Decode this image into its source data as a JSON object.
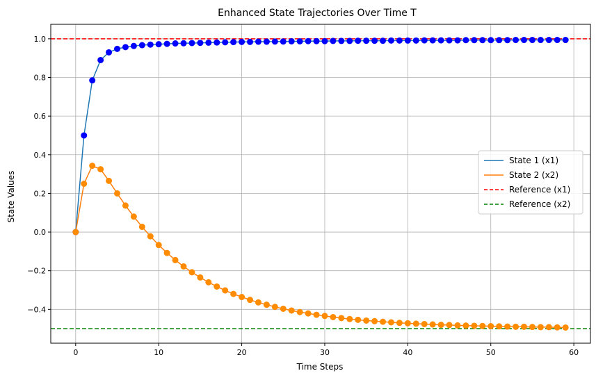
{
  "chart_data": {
    "type": "line",
    "title": "Enhanced State Trajectories Over Time T",
    "xlabel": "Time Steps",
    "ylabel": "State Values",
    "xlim": [
      -3,
      62
    ],
    "ylim": [
      -0.575,
      1.075
    ],
    "xticks": [
      0,
      10,
      20,
      30,
      40,
      50,
      60
    ],
    "yticks": [
      -0.4,
      -0.2,
      0.0,
      0.2,
      0.4,
      0.6,
      0.8,
      1.0
    ],
    "xtick_labels": [
      "0",
      "10",
      "20",
      "30",
      "40",
      "50",
      "60"
    ],
    "ytick_labels": [
      "−0.4",
      "−0.2",
      "0.0",
      "0.2",
      "0.4",
      "0.6",
      "0.8",
      "1.0"
    ],
    "grid": true,
    "legend_position": "center-right",
    "series": [
      {
        "name": "State 1 (x1)",
        "line_color": "#1f77b4",
        "marker_color": "#0000ff",
        "x": [
          0,
          1,
          2,
          3,
          4,
          5,
          6,
          7,
          8,
          9,
          10,
          11,
          12,
          13,
          14,
          15,
          16,
          17,
          18,
          19,
          20,
          21,
          22,
          23,
          24,
          25,
          26,
          27,
          28,
          29,
          30,
          31,
          32,
          33,
          34,
          35,
          36,
          37,
          38,
          39,
          40,
          41,
          42,
          43,
          44,
          45,
          46,
          47,
          48,
          49,
          50,
          51,
          52,
          53,
          54,
          55,
          56,
          57,
          58,
          59
        ],
        "values": [
          0.0,
          0.5,
          0.785,
          0.89,
          0.93,
          0.948,
          0.957,
          0.963,
          0.967,
          0.97,
          0.972,
          0.974,
          0.976,
          0.977,
          0.978,
          0.979,
          0.98,
          0.981,
          0.982,
          0.983,
          0.984,
          0.984,
          0.985,
          0.985,
          0.986,
          0.986,
          0.987,
          0.987,
          0.988,
          0.988,
          0.988,
          0.989,
          0.989,
          0.989,
          0.99,
          0.99,
          0.99,
          0.99,
          0.991,
          0.991,
          0.991,
          0.991,
          0.992,
          0.992,
          0.992,
          0.992,
          0.992,
          0.993,
          0.993,
          0.993,
          0.993,
          0.993,
          0.993,
          0.994,
          0.994,
          0.994,
          0.994,
          0.994,
          0.994,
          0.994
        ]
      },
      {
        "name": "State 2 (x2)",
        "line_color": "#ff7f0e",
        "marker_color": "#ff8c00",
        "x": [
          0,
          1,
          2,
          3,
          4,
          5,
          6,
          7,
          8,
          9,
          10,
          11,
          12,
          13,
          14,
          15,
          16,
          17,
          18,
          19,
          20,
          21,
          22,
          23,
          24,
          25,
          26,
          27,
          28,
          29,
          30,
          31,
          32,
          33,
          34,
          35,
          36,
          37,
          38,
          39,
          40,
          41,
          42,
          43,
          44,
          45,
          46,
          47,
          48,
          49,
          50,
          51,
          52,
          53,
          54,
          55,
          56,
          57,
          58,
          59
        ],
        "values": [
          0.0,
          0.25,
          0.343,
          0.325,
          0.265,
          0.2,
          0.137,
          0.08,
          0.027,
          -0.022,
          -0.067,
          -0.108,
          -0.145,
          -0.178,
          -0.208,
          -0.235,
          -0.26,
          -0.282,
          -0.302,
          -0.32,
          -0.336,
          -0.351,
          -0.364,
          -0.376,
          -0.387,
          -0.397,
          -0.406,
          -0.414,
          -0.421,
          -0.428,
          -0.434,
          -0.44,
          -0.445,
          -0.45,
          -0.454,
          -0.458,
          -0.461,
          -0.464,
          -0.467,
          -0.47,
          -0.472,
          -0.474,
          -0.476,
          -0.478,
          -0.48,
          -0.481,
          -0.483,
          -0.484,
          -0.485,
          -0.486,
          -0.487,
          -0.488,
          -0.489,
          -0.49,
          -0.49,
          -0.491,
          -0.492,
          -0.492,
          -0.493,
          -0.494
        ]
      }
    ],
    "reference_lines": [
      {
        "name": "Reference (x1)",
        "y": 1.0,
        "color": "#ff0000",
        "style": "dashed"
      },
      {
        "name": "Reference (x2)",
        "y": -0.5,
        "color": "#008000",
        "style": "dashed"
      }
    ],
    "colors": {
      "grid": "#b0b0b0",
      "axes": "#000000"
    }
  }
}
